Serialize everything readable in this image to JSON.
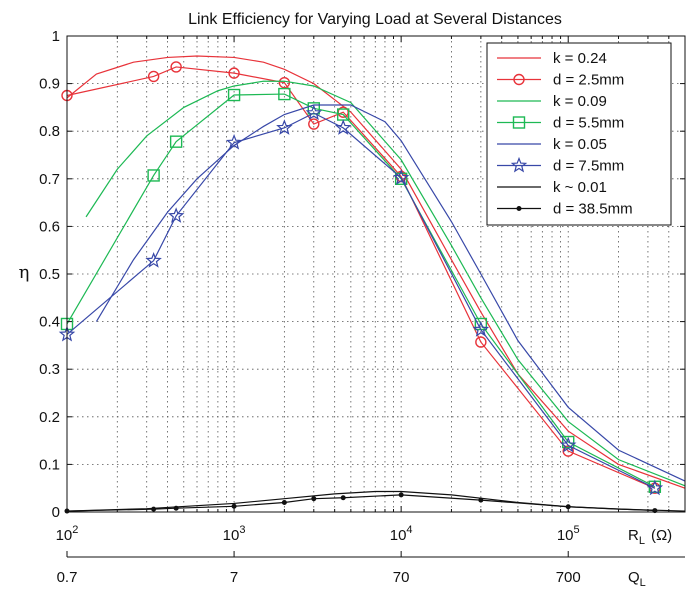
{
  "chart_data": {
    "type": "line",
    "title": "Link Efficiency for Varying Load at Several Distances",
    "ylabel": "η",
    "x_axis_bottom": {
      "name": "R",
      "name_subscript": "L",
      "unit": "(Ω)",
      "scale": "log",
      "range": [
        100,
        500000
      ],
      "ticks": [
        {
          "value": 100,
          "base": "10",
          "exp": "2"
        },
        {
          "value": 1000,
          "base": "10",
          "exp": "3"
        },
        {
          "value": 10000,
          "base": "10",
          "exp": "4"
        },
        {
          "value": 100000,
          "base": "10",
          "exp": "5"
        }
      ]
    },
    "x_axis_secondary": {
      "name": "Q",
      "name_subscript": "L",
      "ticks": [
        {
          "at_RL": 100,
          "label": "0.7"
        },
        {
          "at_RL": 1000,
          "label": "7"
        },
        {
          "at_RL": 10000,
          "label": "70"
        },
        {
          "at_RL": 100000,
          "label": "700"
        }
      ]
    },
    "y_axis": {
      "range": [
        0,
        1
      ],
      "ticks": [
        "0",
        "0.1",
        "0.2",
        "0.3",
        "0.4",
        "0.5",
        "0.6",
        "0.7",
        "0.8",
        "0.9",
        "1"
      ]
    },
    "grid": "dotted major and minor",
    "legend_position": "top-right",
    "series": [
      {
        "name": "k = 0.24",
        "kind": "line",
        "color": "#e8333a",
        "x": [
          100,
          150,
          250,
          400,
          600,
          1000,
          1500,
          2000,
          3000,
          5000,
          10000,
          20000,
          30000,
          50000,
          100000,
          200000,
          500000
        ],
        "y": [
          0.87,
          0.92,
          0.945,
          0.955,
          0.958,
          0.955,
          0.945,
          0.93,
          0.9,
          0.84,
          0.72,
          0.53,
          0.42,
          0.29,
          0.17,
          0.1,
          0.05
        ]
      },
      {
        "name": "d = 2.5mm",
        "kind": "marker-line",
        "marker": "circle",
        "color": "#e8333a",
        "x": [
          100,
          330,
          450,
          1000,
          2000,
          3000,
          4500,
          10000,
          30000,
          100000,
          330000
        ],
        "y": [
          0.875,
          0.915,
          0.935,
          0.922,
          0.902,
          0.815,
          0.84,
          0.705,
          0.357,
          0.128,
          0.05
        ]
      },
      {
        "name": "k = 0.09",
        "kind": "line",
        "color": "#1db954",
        "x": [
          130,
          200,
          300,
          500,
          800,
          1000,
          1500,
          2000,
          3000,
          5000,
          10000,
          20000,
          30000,
          50000,
          100000,
          200000,
          500000
        ],
        "y": [
          0.62,
          0.72,
          0.79,
          0.85,
          0.885,
          0.895,
          0.905,
          0.905,
          0.895,
          0.86,
          0.74,
          0.56,
          0.45,
          0.32,
          0.19,
          0.11,
          0.055
        ]
      },
      {
        "name": "d = 5.5mm",
        "kind": "marker-line",
        "marker": "square",
        "color": "#1db954",
        "x": [
          100,
          330,
          450,
          1000,
          2000,
          3000,
          4500,
          10000,
          30000,
          100000,
          330000
        ],
        "y": [
          0.395,
          0.707,
          0.778,
          0.876,
          0.878,
          0.848,
          0.835,
          0.7,
          0.395,
          0.147,
          0.053
        ]
      },
      {
        "name": "k = 0.05",
        "kind": "line",
        "color": "#3848a8",
        "x": [
          150,
          250,
          400,
          600,
          1000,
          1500,
          2000,
          3000,
          5000,
          8000,
          10000,
          20000,
          30000,
          50000,
          100000,
          200000,
          500000
        ],
        "y": [
          0.4,
          0.53,
          0.63,
          0.7,
          0.77,
          0.81,
          0.835,
          0.855,
          0.855,
          0.82,
          0.78,
          0.61,
          0.5,
          0.36,
          0.22,
          0.13,
          0.065
        ]
      },
      {
        "name": "d = 7.5mm",
        "kind": "marker-line",
        "marker": "star",
        "color": "#3848a8",
        "x": [
          100,
          330,
          450,
          1000,
          2000,
          3000,
          4500,
          10000,
          30000,
          100000,
          330000
        ],
        "y": [
          0.373,
          0.528,
          0.622,
          0.776,
          0.807,
          0.838,
          0.807,
          0.702,
          0.383,
          0.14,
          0.05
        ]
      },
      {
        "name": "k ~ 0.01",
        "kind": "line",
        "color": "#111111",
        "x": [
          100,
          300,
          1000,
          2000,
          4000,
          7000,
          10000,
          20000,
          50000,
          100000,
          200000,
          500000
        ],
        "y": [
          0.002,
          0.007,
          0.018,
          0.028,
          0.038,
          0.043,
          0.043,
          0.036,
          0.02,
          0.011,
          0.006,
          0.002
        ]
      },
      {
        "name": "d = 38.5mm",
        "kind": "marker-line",
        "marker": "dot",
        "color": "#111111",
        "x": [
          100,
          330,
          450,
          1000,
          2000,
          3000,
          4500,
          10000,
          30000,
          100000,
          330000
        ],
        "y": [
          0.002,
          0.006,
          0.008,
          0.012,
          0.02,
          0.028,
          0.03,
          0.036,
          0.025,
          0.011,
          0.003
        ]
      }
    ]
  }
}
